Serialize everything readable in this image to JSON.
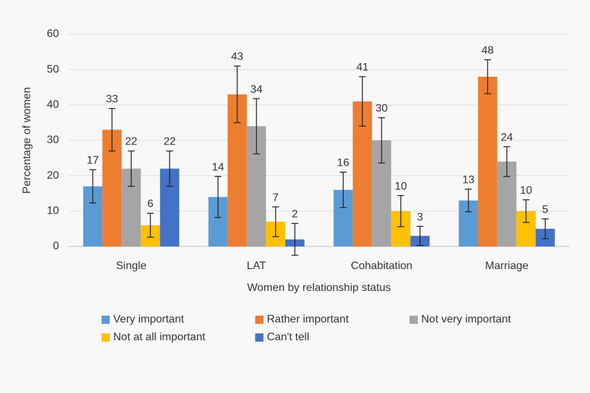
{
  "chart_data": {
    "type": "bar",
    "x_label": "Women by relationship status",
    "y_label": "Percentage of women",
    "categories": [
      "Single",
      "LAT",
      "Cohabitation",
      "Marriage"
    ],
    "series": [
      {
        "name": "Very important",
        "color": "#5b9bd5",
        "values": [
          17,
          14,
          16,
          13
        ],
        "errors": [
          4.7,
          5.8,
          5,
          3.2
        ]
      },
      {
        "name": "Rather important",
        "color": "#ed7d31",
        "values": [
          33,
          43,
          41,
          48
        ],
        "errors": [
          6,
          8,
          7,
          4.8
        ]
      },
      {
        "name": "Not very important",
        "color": "#a5a5a5",
        "values": [
          22,
          34,
          30,
          24
        ],
        "errors": [
          5,
          7.8,
          6.4,
          4.2
        ]
      },
      {
        "name": "Not at all important",
        "color": "#ffc000",
        "values": [
          6,
          7,
          10,
          10
        ],
        "errors": [
          3.4,
          4.2,
          4.4,
          3.2
        ]
      },
      {
        "name": "Can't tell",
        "color": "#4472c4",
        "values": [
          22,
          2,
          3,
          5
        ],
        "errors": [
          5,
          4.5,
          2.7,
          2.8
        ]
      }
    ],
    "ylim": [
      0,
      60
    ],
    "yticks": [
      0,
      10,
      20,
      30,
      40,
      50,
      60
    ],
    "grid": true,
    "legend": "bottom"
  }
}
